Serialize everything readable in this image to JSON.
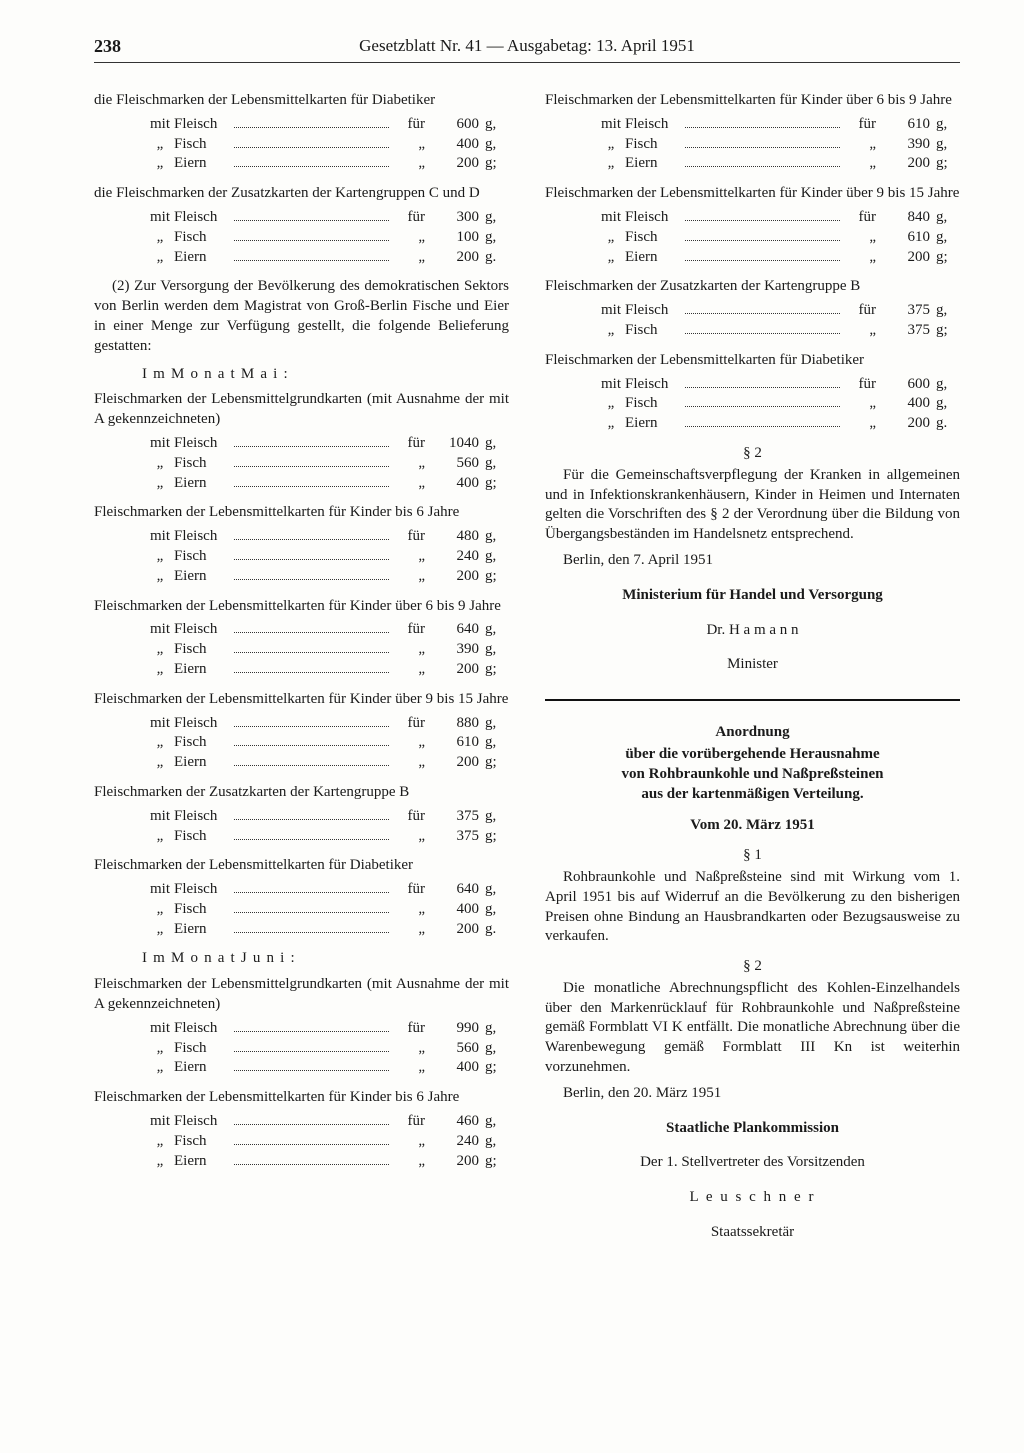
{
  "page_number": "238",
  "header": "Gesetzblatt Nr. 41 — Ausgabetag: 13. April 1951",
  "left": {
    "p1": "die Fleischmarken der Lebensmittelkarten für Diabetiker",
    "r1": [
      {
        "lbl": "mit",
        "itm": "Fleisch",
        "for": "für",
        "amt": "600",
        "u": "g,"
      },
      {
        "lbl": "„",
        "itm": "Fisch",
        "for": "„",
        "amt": "400",
        "u": "g,"
      },
      {
        "lbl": "„",
        "itm": "Eiern",
        "for": "„",
        "amt": "200",
        "u": "g;"
      }
    ],
    "p2": "die Fleischmarken der Zusatzkarten der Kartengruppen C und D",
    "r2": [
      {
        "lbl": "mit",
        "itm": "Fleisch",
        "for": "für",
        "amt": "300",
        "u": "g,"
      },
      {
        "lbl": "„",
        "itm": "Fisch",
        "for": "„",
        "amt": "100",
        "u": "g,"
      },
      {
        "lbl": "„",
        "itm": "Eiern",
        "for": "„",
        "amt": "200",
        "u": "g."
      }
    ],
    "p3": "(2) Zur Versorgung der Bevölkerung des demokratischen Sektors von Berlin werden dem Magistrat von Groß-Berlin Fische und Eier in einer Menge zur Verfügung gestellt, die folgende Belieferung gestatten:",
    "month_may": "I m  M o n a t  M a i :",
    "p4": "Fleischmarken der Lebensmittelgrundkarten (mit Ausnahme der mit A gekennzeichneten)",
    "r4": [
      {
        "lbl": "mit",
        "itm": "Fleisch",
        "for": "für",
        "amt": "1040",
        "u": "g,"
      },
      {
        "lbl": "„",
        "itm": "Fisch",
        "for": "„",
        "amt": "560",
        "u": "g,"
      },
      {
        "lbl": "„",
        "itm": "Eiern",
        "for": "„",
        "amt": "400",
        "u": "g;"
      }
    ],
    "p5": "Fleischmarken der Lebensmittelkarten für Kinder bis 6 Jahre",
    "r5": [
      {
        "lbl": "mit",
        "itm": "Fleisch",
        "for": "für",
        "amt": "480",
        "u": "g,"
      },
      {
        "lbl": "„",
        "itm": "Fisch",
        "for": "„",
        "amt": "240",
        "u": "g,"
      },
      {
        "lbl": "„",
        "itm": "Eiern",
        "for": "„",
        "amt": "200",
        "u": "g;"
      }
    ],
    "p6": "Fleischmarken der Lebensmittelkarten für Kinder über 6 bis 9 Jahre",
    "r6": [
      {
        "lbl": "mit",
        "itm": "Fleisch",
        "for": "für",
        "amt": "640",
        "u": "g,"
      },
      {
        "lbl": "„",
        "itm": "Fisch",
        "for": "„",
        "amt": "390",
        "u": "g,"
      },
      {
        "lbl": "„",
        "itm": "Eiern",
        "for": "„",
        "amt": "200",
        "u": "g;"
      }
    ],
    "p7": "Fleischmarken der Lebensmittelkarten für Kinder über 9 bis 15 Jahre",
    "r7": [
      {
        "lbl": "mit",
        "itm": "Fleisch",
        "for": "für",
        "amt": "880",
        "u": "g,"
      },
      {
        "lbl": "„",
        "itm": "Fisch",
        "for": "„",
        "amt": "610",
        "u": "g,"
      },
      {
        "lbl": "„",
        "itm": "Eiern",
        "for": "„",
        "amt": "200",
        "u": "g;"
      }
    ],
    "p8": "Fleischmarken der Zusatzkarten der Kartengruppe B",
    "r8": [
      {
        "lbl": "mit",
        "itm": "Fleisch",
        "for": "für",
        "amt": "375",
        "u": "g,"
      },
      {
        "lbl": "„",
        "itm": "Fisch",
        "for": "„",
        "amt": "375",
        "u": "g;"
      }
    ],
    "p9": "Fleischmarken der Lebensmittelkarten für Diabetiker",
    "r9": [
      {
        "lbl": "mit",
        "itm": "Fleisch",
        "for": "für",
        "amt": "640",
        "u": "g,"
      },
      {
        "lbl": "„",
        "itm": "Fisch",
        "for": "„",
        "amt": "400",
        "u": "g,"
      },
      {
        "lbl": "„",
        "itm": "Eiern",
        "for": "„",
        "amt": "200",
        "u": "g."
      }
    ],
    "month_june": "I m  M o n a t  J u n i :",
    "p10": "Fleischmarken der Lebensmittelgrundkarten (mit Ausnahme der mit A gekennzeichneten)",
    "r10": [
      {
        "lbl": "mit",
        "itm": "Fleisch",
        "for": "für",
        "amt": "990",
        "u": "g,"
      },
      {
        "lbl": "„",
        "itm": "Fisch",
        "for": "„",
        "amt": "560",
        "u": "g,"
      },
      {
        "lbl": "„",
        "itm": "Eiern",
        "for": "„",
        "amt": "400",
        "u": "g;"
      }
    ],
    "p11": "Fleischmarken der Lebensmittelkarten für Kinder bis 6 Jahre",
    "r11": [
      {
        "lbl": "mit",
        "itm": "Fleisch",
        "for": "für",
        "amt": "460",
        "u": "g,"
      },
      {
        "lbl": "„",
        "itm": "Fisch",
        "for": "„",
        "amt": "240",
        "u": "g,"
      },
      {
        "lbl": "„",
        "itm": "Eiern",
        "for": "„",
        "amt": "200",
        "u": "g;"
      }
    ]
  },
  "right": {
    "p1": "Fleischmarken der Lebensmittelkarten für Kinder über 6 bis 9 Jahre",
    "r1": [
      {
        "lbl": "mit",
        "itm": "Fleisch",
        "for": "für",
        "amt": "610",
        "u": "g,"
      },
      {
        "lbl": "„",
        "itm": "Fisch",
        "for": "„",
        "amt": "390",
        "u": "g,"
      },
      {
        "lbl": "„",
        "itm": "Eiern",
        "for": "„",
        "amt": "200",
        "u": "g;"
      }
    ],
    "p2": "Fleischmarken der Lebensmittelkarten für Kinder über 9 bis 15 Jahre",
    "r2": [
      {
        "lbl": "mit",
        "itm": "Fleisch",
        "for": "für",
        "amt": "840",
        "u": "g,"
      },
      {
        "lbl": "„",
        "itm": "Fisch",
        "for": "„",
        "amt": "610",
        "u": "g,"
      },
      {
        "lbl": "„",
        "itm": "Eiern",
        "for": "„",
        "amt": "200",
        "u": "g;"
      }
    ],
    "p3": "Fleischmarken der Zusatzkarten der Kartengruppe B",
    "r3": [
      {
        "lbl": "mit",
        "itm": "Fleisch",
        "for": "für",
        "amt": "375",
        "u": "g,"
      },
      {
        "lbl": "„",
        "itm": "Fisch",
        "for": "„",
        "amt": "375",
        "u": "g;"
      }
    ],
    "p4": "Fleischmarken der Lebensmittelkarten für Diabetiker",
    "r4": [
      {
        "lbl": "mit",
        "itm": "Fleisch",
        "for": "für",
        "amt": "600",
        "u": "g,"
      },
      {
        "lbl": "„",
        "itm": "Fisch",
        "for": "„",
        "amt": "400",
        "u": "g,"
      },
      {
        "lbl": "„",
        "itm": "Eiern",
        "for": "„",
        "amt": "200",
        "u": "g."
      }
    ],
    "sec2": "§ 2",
    "sec2_body": "Für die Gemeinschaftsverpflegung der Kranken in allgemeinen und in Infektionskrankenhäusern, Kinder in Heimen und Internaten gelten die Vorschriften des § 2 der Verordnung über die Bildung von Übergangsbeständen im Handelsnetz entsprechend.",
    "date1": "Berlin, den 7. April 1951",
    "ministry": "Ministerium für Handel und Versorgung",
    "signer1": "Dr. H a m a n n",
    "signer1_title": "Minister",
    "ord_title": "Anordnung",
    "ord_sub1": "über die vorübergehende Herausnahme",
    "ord_sub2": "von Rohbraunkohle und Naßpreßsteinen",
    "ord_sub3": "aus der kartenmäßigen Verteilung.",
    "ord_date": "Vom 20. März 1951",
    "o_sec1": "§ 1",
    "o_sec1_body": "Rohbraunkohle und Naßpreßsteine sind mit Wirkung vom 1. April 1951 bis auf Widerruf an die Bevölkerung zu den bisherigen Preisen ohne Bindung an Hausbrandkarten oder Bezugsausweise zu verkaufen.",
    "o_sec2": "§ 2",
    "o_sec2_body": "Die monatliche Abrechnungspflicht des Kohlen-Einzelhandels über den Markenrücklauf für Rohbraunkohle und Naßpreßsteine gemäß Formblatt VI K entfällt. Die monatliche Abrechnung über die Warenbewegung gemäß Formblatt III Kn ist weiterhin vorzunehmen.",
    "date2": "Berlin, den 20. März 1951",
    "comm": "Staatliche Plankommission",
    "comm2": "Der 1. Stellvertreter des Vorsitzenden",
    "signer2": "L e u s c h n e r",
    "signer2_title": "Staatssekretär"
  }
}
